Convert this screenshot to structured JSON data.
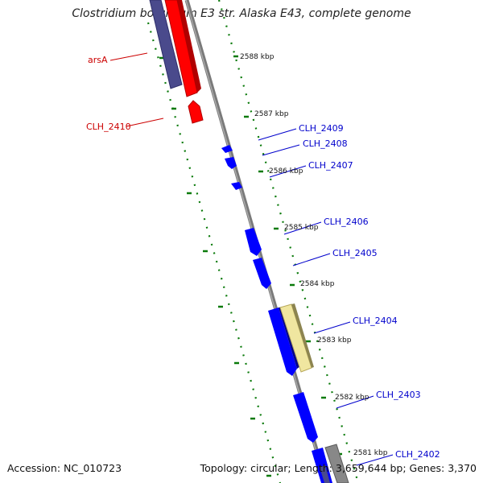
{
  "title": "Clostridium botulinum E3 str. Alaska E43, complete genome",
  "accession": "Accession: NC_010723",
  "stats": "Topology: circular; Length: 3,659,644 bp; Genes: 3,370",
  "colors": {
    "forward_gene": "#ff0000",
    "reverse_gene": "#0000ff",
    "pseudo_gene": "#f0e6a0",
    "cds_dark": "#4a4a8c",
    "backbone": "#808080",
    "tick": "#0a7a0a"
  },
  "scale_labels": [
    "2588 kbp",
    "2587 kbp",
    "2586 kbp",
    "2585 kbp",
    "2584 kbp",
    "2583 kbp",
    "2582 kbp",
    "2581 kbp"
  ],
  "gene_labels": [
    {
      "text": "arsA",
      "color": "#cc0000"
    },
    {
      "text": "CLH_2410",
      "color": "#cc0000"
    },
    {
      "text": "CLH_2409",
      "color": "#0000cc"
    },
    {
      "text": "CLH_2408",
      "color": "#0000cc"
    },
    {
      "text": "CLH_2407",
      "color": "#0000cc"
    },
    {
      "text": "CLH_2406",
      "color": "#0000cc"
    },
    {
      "text": "CLH_2405",
      "color": "#0000cc"
    },
    {
      "text": "CLH_2404",
      "color": "#0000cc"
    },
    {
      "text": "CLH_2403",
      "color": "#0000cc"
    },
    {
      "text": "CLH_2402",
      "color": "#0000cc"
    }
  ]
}
